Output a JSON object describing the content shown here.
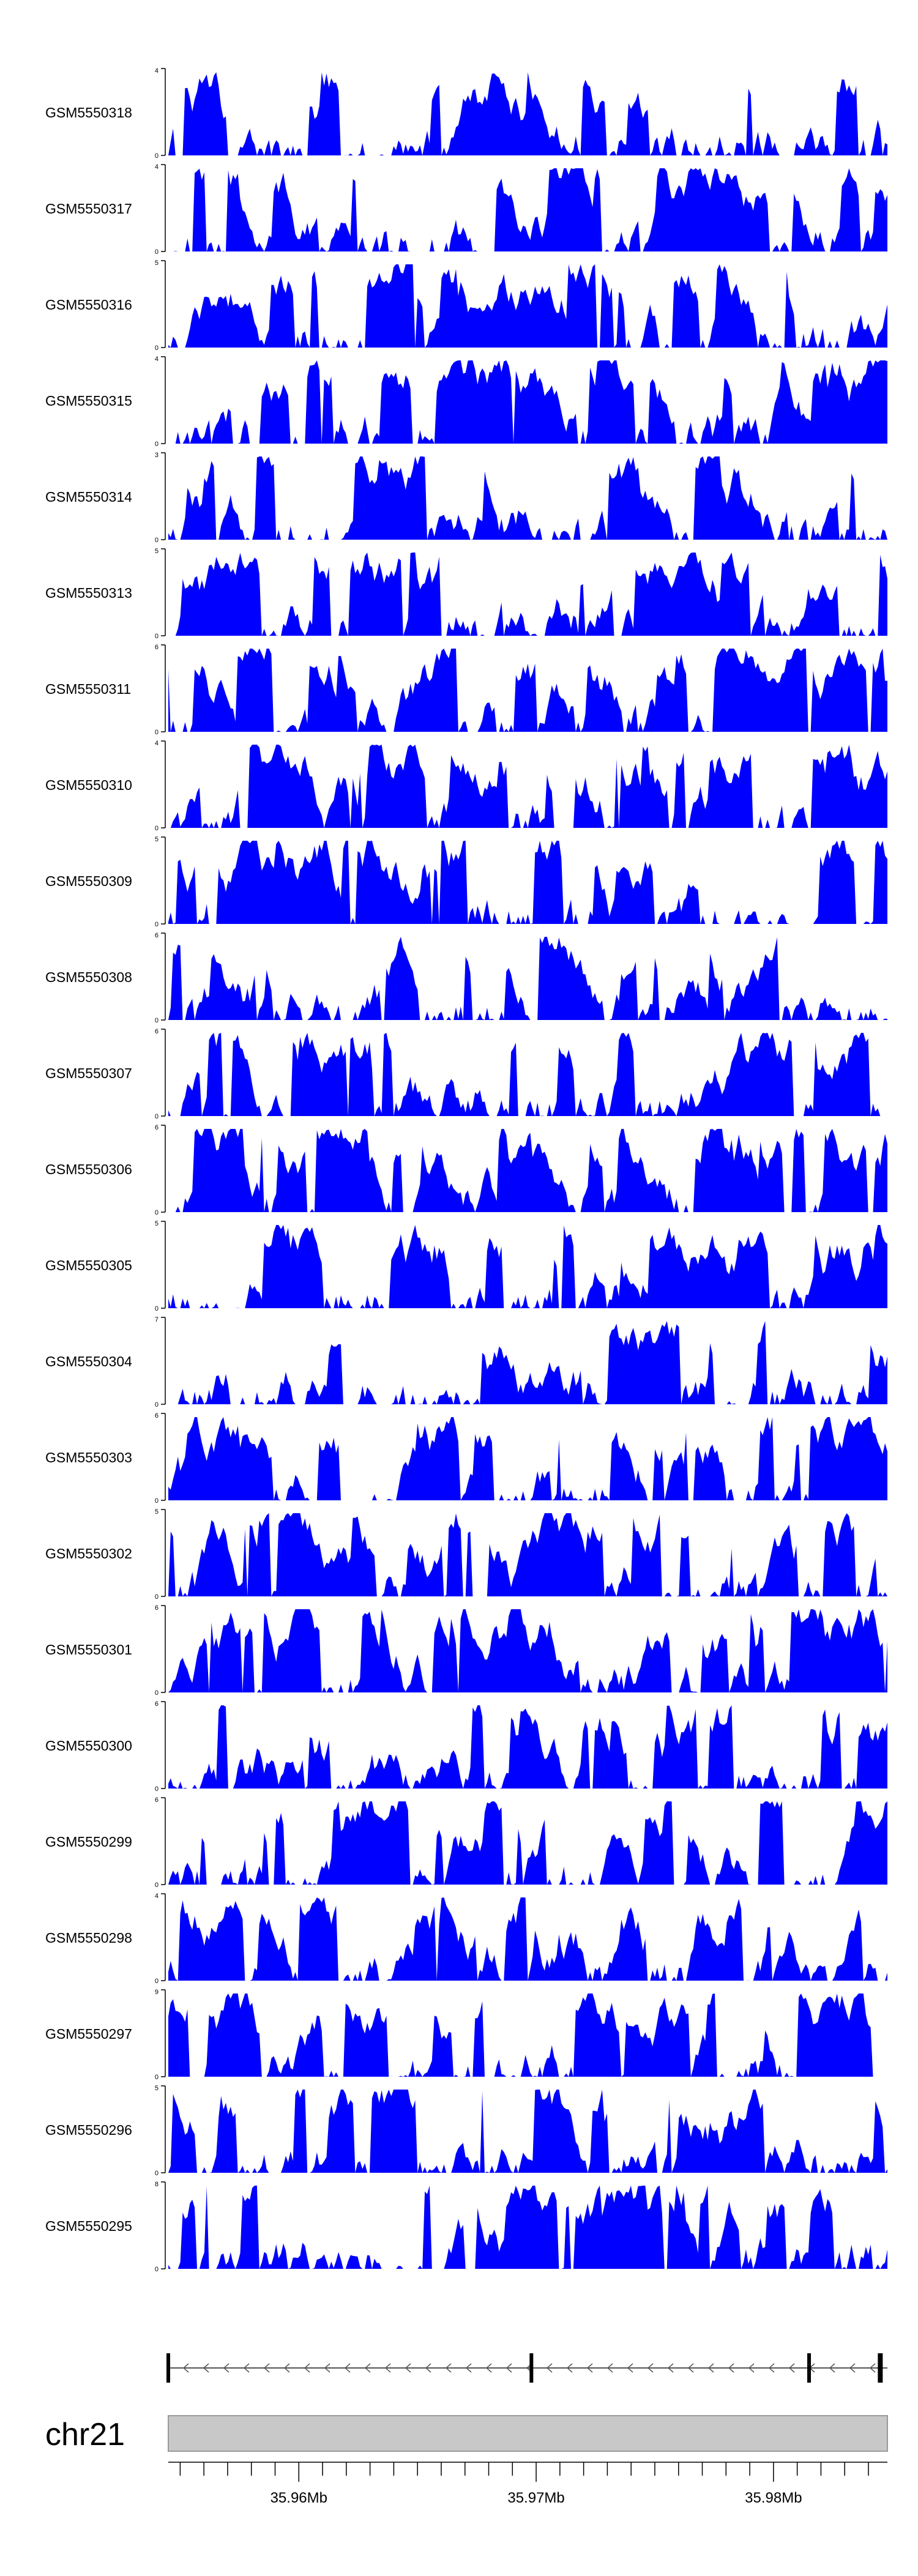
{
  "chart_data": {
    "type": "area",
    "title": "",
    "track_color": "#0000ff",
    "series": [
      {
        "name": "GSM5550318",
        "ymax": "4",
        "ymin": "0",
        "seed": 318
      },
      {
        "name": "GSM5550317",
        "ymax": "4",
        "ymin": "0",
        "seed": 317
      },
      {
        "name": "GSM5550316",
        "ymax": "5",
        "ymin": "0",
        "seed": 316
      },
      {
        "name": "GSM5550315",
        "ymax": "4",
        "ymin": "0",
        "seed": 315
      },
      {
        "name": "GSM5550314",
        "ymax": "3",
        "ymin": "0",
        "seed": 314
      },
      {
        "name": "GSM5550313",
        "ymax": "5",
        "ymin": "0",
        "seed": 313
      },
      {
        "name": "GSM5550311",
        "ymax": "6",
        "ymin": "0",
        "seed": 311
      },
      {
        "name": "GSM5550310",
        "ymax": "4",
        "ymin": "0",
        "seed": 310
      },
      {
        "name": "GSM5550309",
        "ymax": "5",
        "ymin": "0",
        "seed": 309
      },
      {
        "name": "GSM5550308",
        "ymax": "6",
        "ymin": "0",
        "seed": 308
      },
      {
        "name": "GSM5550307",
        "ymax": "6",
        "ymin": "0",
        "seed": 307
      },
      {
        "name": "GSM5550306",
        "ymax": "6",
        "ymin": "0",
        "seed": 306
      },
      {
        "name": "GSM5550305",
        "ymax": "5",
        "ymin": "0",
        "seed": 305
      },
      {
        "name": "GSM5550304",
        "ymax": "7",
        "ymin": "0",
        "seed": 304
      },
      {
        "name": "GSM5550303",
        "ymax": "6",
        "ymin": "0",
        "seed": 303
      },
      {
        "name": "GSM5550302",
        "ymax": "5",
        "ymin": "0",
        "seed": 302
      },
      {
        "name": "GSM5550301",
        "ymax": "6",
        "ymin": "0",
        "seed": 301
      },
      {
        "name": "GSM5550300",
        "ymax": "6",
        "ymin": "0",
        "seed": 300
      },
      {
        "name": "GSM5550299",
        "ymax": "6",
        "ymin": "0",
        "seed": 299
      },
      {
        "name": "GSM5550298",
        "ymax": "4",
        "ymin": "0",
        "seed": 298
      },
      {
        "name": "GSM5550297",
        "ymax": "9",
        "ymin": "0",
        "seed": 297
      },
      {
        "name": "GSM5550296",
        "ymax": "5",
        "ymin": "0",
        "seed": 296
      },
      {
        "name": "GSM5550295",
        "ymax": "8",
        "ymin": "0",
        "seed": 295
      }
    ],
    "gene_track": {
      "strand": "-",
      "exon_marks_mb": [
        35.9545,
        35.9698,
        35.9815,
        35.9845
      ]
    },
    "ideogram": {
      "chromosome": "chr21"
    },
    "x_axis": {
      "xlim_mb": [
        35.9545,
        35.9848
      ],
      "ticks_mb": [
        35.955,
        35.956,
        35.957,
        35.958,
        35.959,
        35.96,
        35.961,
        35.962,
        35.963,
        35.964,
        35.965,
        35.966,
        35.967,
        35.968,
        35.969,
        35.97,
        35.971,
        35.972,
        35.973,
        35.974,
        35.975,
        35.976,
        35.977,
        35.978,
        35.979,
        35.98,
        35.981,
        35.982,
        35.983,
        35.984
      ],
      "labels": [
        {
          "mb": 35.96,
          "text": "35.96Mb"
        },
        {
          "mb": 35.97,
          "text": "35.97Mb"
        },
        {
          "mb": 35.98,
          "text": "35.98Mb"
        }
      ]
    }
  }
}
